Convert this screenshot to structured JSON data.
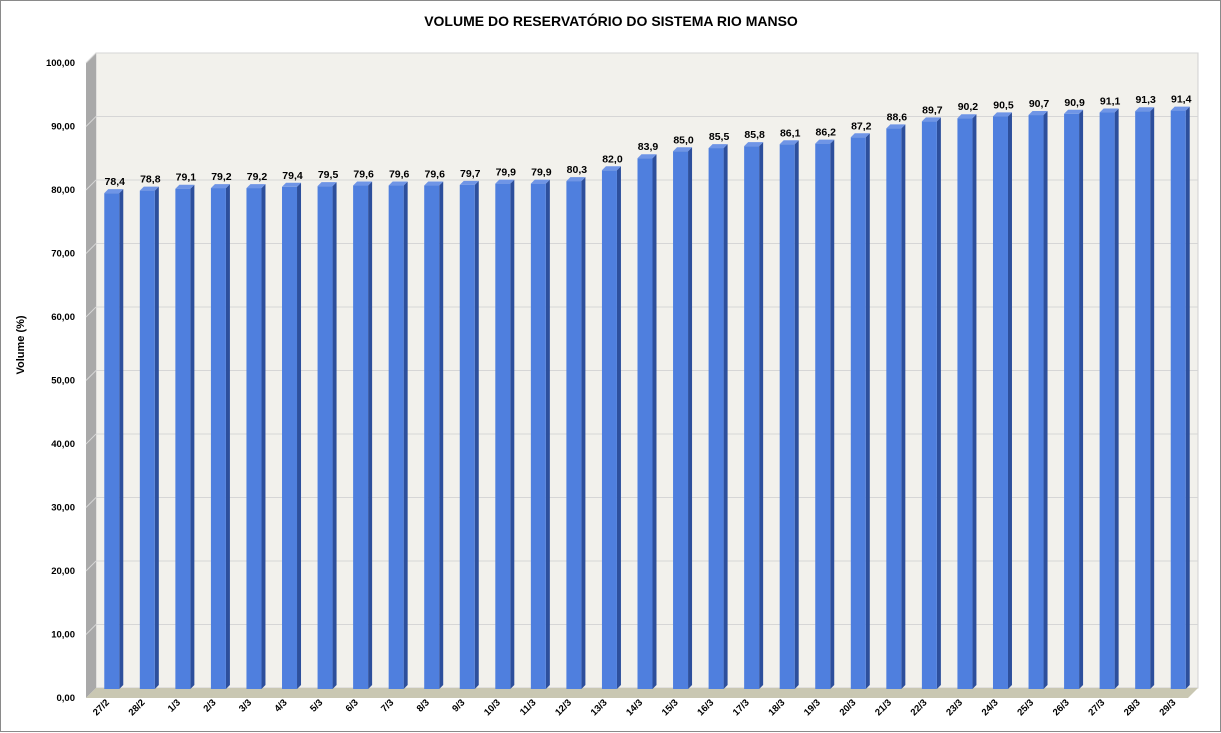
{
  "chart_data": {
    "type": "bar",
    "title": "VOLUME DO RESERVATÓRIO DO SISTEMA RIO MANSO",
    "xlabel": "",
    "ylabel": "Volume (%)",
    "ylim": [
      0,
      100
    ],
    "yticks": [
      "0,00",
      "10,00",
      "20,00",
      "30,00",
      "40,00",
      "50,00",
      "60,00",
      "70,00",
      "80,00",
      "90,00",
      "100,00"
    ],
    "grid": true,
    "legend": "none",
    "bar_color": "#4f7fde",
    "categories": [
      "27/2",
      "28/2",
      "1/3",
      "2/3",
      "3/3",
      "4/3",
      "5/3",
      "6/3",
      "7/3",
      "8/3",
      "9/3",
      "10/3",
      "11/3",
      "12/3",
      "13/3",
      "14/3",
      "15/3",
      "16/3",
      "17/3",
      "18/3",
      "19/3",
      "20/3",
      "21/3",
      "22/3",
      "23/3",
      "24/3",
      "25/3",
      "26/3",
      "27/3",
      "28/3",
      "29/3"
    ],
    "values": [
      78.4,
      78.8,
      79.1,
      79.2,
      79.2,
      79.4,
      79.5,
      79.6,
      79.6,
      79.6,
      79.7,
      79.9,
      79.9,
      80.3,
      82.0,
      83.9,
      85.0,
      85.5,
      85.8,
      86.1,
      86.2,
      87.2,
      88.6,
      89.7,
      90.2,
      90.5,
      90.7,
      90.9,
      91.1,
      91.3,
      91.4
    ],
    "data_labels": [
      "78,4",
      "78,8",
      "79,1",
      "79,2",
      "79,2",
      "79,4",
      "79,5",
      "79,6",
      "79,6",
      "79,6",
      "79,7",
      "79,9",
      "79,9",
      "80,3",
      "82,0",
      "83,9",
      "85,0",
      "85,5",
      "85,8",
      "86,1",
      "86,2",
      "87,2",
      "88,6",
      "89,7",
      "90,2",
      "90,5",
      "90,7",
      "90,9",
      "91,1",
      "91,3",
      "91,4"
    ]
  }
}
